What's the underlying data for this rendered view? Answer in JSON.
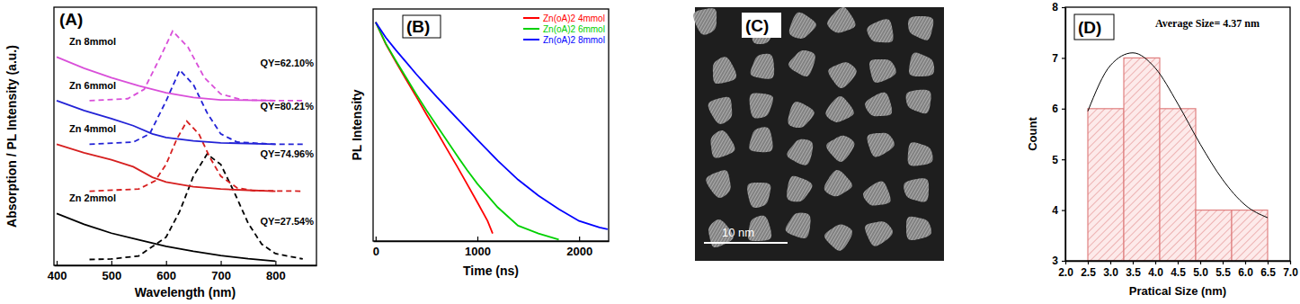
{
  "chart_data": [
    {
      "type": "line",
      "title": "(A)",
      "x_label": "Wavelength (nm)",
      "y_label": "Absorption / PL Intensity (a.u.)",
      "xlim": [
        395,
        875
      ],
      "xticks": [
        400,
        500,
        600,
        700,
        800
      ],
      "ylim": [
        0,
        11
      ],
      "tick_labels": "x",
      "annotations": [
        "QY=27.54%",
        "QY=74.96%",
        "QY=80.21%",
        "QY=62.10%"
      ],
      "series": [
        {
          "name": "Zn 2mmol",
          "color": "#000000",
          "line_style": "solid",
          "x": [
            400,
            450,
            500,
            550,
            600,
            650,
            700,
            750,
            800
          ],
          "values": [
            2.21,
            1.75,
            1.37,
            1.09,
            0.81,
            0.6,
            0.42,
            0.28,
            0.18
          ]
        },
        {
          "color": "#000000",
          "line_style": "dashed",
          "x": [
            460,
            500,
            550,
            600,
            625,
            650,
            675,
            700,
            725,
            750,
            775,
            800,
            850
          ],
          "values": [
            0.25,
            0.27,
            0.4,
            1.2,
            2.3,
            3.8,
            4.74,
            4.3,
            3.1,
            1.8,
            0.9,
            0.5,
            0.27
          ]
        },
        {
          "name": "Zn 4mmol",
          "color": "#d61f1f",
          "line_style": "solid",
          "x": [
            400,
            450,
            500,
            540,
            575,
            600,
            650,
            700,
            750,
            800
          ],
          "values": [
            5.16,
            4.8,
            4.5,
            4.2,
            3.75,
            3.55,
            3.35,
            3.25,
            3.2,
            3.16
          ]
        },
        {
          "color": "#d61f1f",
          "line_style": "dashed",
          "x": [
            460,
            550,
            580,
            600,
            620,
            638,
            660,
            680,
            700,
            730,
            760,
            850
          ],
          "values": [
            3.16,
            3.25,
            3.6,
            4.3,
            5.4,
            6.14,
            5.6,
            4.6,
            3.8,
            3.3,
            3.18,
            3.16
          ]
        },
        {
          "name": "Zn 6mmol",
          "color": "#2323d6",
          "line_style": "solid",
          "x": [
            400,
            450,
            500,
            540,
            575,
            600,
            650,
            700,
            800
          ],
          "values": [
            7.02,
            6.6,
            6.25,
            5.95,
            5.6,
            5.45,
            5.3,
            5.22,
            5.16
          ]
        },
        {
          "color": "#2323d6",
          "line_style": "dashed",
          "x": [
            460,
            540,
            570,
            600,
            625,
            650,
            675,
            700,
            730,
            800,
            850
          ],
          "values": [
            5.16,
            5.25,
            5.6,
            7.0,
            8.32,
            7.7,
            6.5,
            5.6,
            5.25,
            5.16,
            5.16
          ]
        },
        {
          "name": "Zn 8mmol",
          "color": "#d94fd9",
          "line_style": "solid",
          "x": [
            400,
            450,
            500,
            550,
            600,
            650,
            700,
            800
          ],
          "values": [
            8.88,
            8.4,
            8.0,
            7.65,
            7.35,
            7.15,
            7.05,
            7.02
          ]
        },
        {
          "color": "#d94fd9",
          "line_style": "dashed",
          "x": [
            460,
            530,
            560,
            590,
            612,
            640,
            670,
            700,
            740,
            800,
            850
          ],
          "values": [
            7.02,
            7.1,
            7.5,
            8.9,
            9.98,
            9.3,
            8.0,
            7.3,
            7.05,
            7.02,
            7.02
          ]
        }
      ]
    },
    {
      "type": "line",
      "title": "(B)",
      "x_label": "Time (ns)",
      "y_label": "PL Intensity",
      "xlim": [
        -25,
        2290
      ],
      "xticks": [
        0,
        1000,
        2000
      ],
      "ylim": [
        1,
        3000
      ],
      "log": "y",
      "tick_labels": "x",
      "legend": "top-right",
      "series": [
        {
          "name": "Zn(oA)2 4mmol",
          "color": "#ff0000",
          "line_style": "solid",
          "x": [
            0,
            100,
            200,
            300,
            400,
            500,
            600,
            700,
            800,
            900,
            1000,
            1100,
            1150
          ],
          "values": [
            1905,
            891,
            479,
            263,
            145,
            79,
            44,
            24,
            13.2,
            7.1,
            3.8,
            2.0,
            1.3
          ]
        },
        {
          "name": "Zn(oA)2 6mmol",
          "color": "#00d000",
          "line_style": "solid",
          "x": [
            0,
            100,
            200,
            300,
            400,
            500,
            600,
            700,
            800,
            900,
            1000,
            1200,
            1400,
            1600,
            1800
          ],
          "values": [
            1905,
            912,
            501,
            282,
            158,
            91,
            54,
            32,
            19,
            11.5,
            7.2,
            3.2,
            1.7,
            1.3,
            1.05
          ]
        },
        {
          "name": "Zn(oA)2 8mmol",
          "color": "#0000ff",
          "line_style": "solid",
          "x": [
            0,
            100,
            200,
            300,
            400,
            500,
            600,
            700,
            800,
            1000,
            1200,
            1400,
            1600,
            1800,
            2000,
            2200,
            2280
          ],
          "values": [
            1905,
            1122,
            724,
            479,
            316,
            214,
            145,
            100,
            69,
            33,
            16,
            8.3,
            4.8,
            3.0,
            2.0,
            1.6,
            1.5
          ]
        }
      ]
    },
    {
      "type": "histogram",
      "title": "(D)",
      "x_label": "Pratical Size (nm)",
      "y_label": "Count",
      "annotations": [
        "Average Size= 4.37 nm"
      ],
      "xlim": [
        2,
        7
      ],
      "xticks": [
        {
          "value": 2,
          "label": "2.0"
        },
        {
          "value": 2.5,
          "label": "2.5"
        },
        {
          "value": 3,
          "label": "3.0"
        },
        {
          "value": 3.5,
          "label": "3.5"
        },
        {
          "value": 4,
          "label": "4.0"
        },
        {
          "value": 4.5,
          "label": "4.5"
        },
        {
          "value": 5,
          "label": "5.0"
        },
        {
          "value": 5.5,
          "label": "5.5"
        },
        {
          "value": 6,
          "label": "6.0"
        },
        {
          "value": 6.5,
          "label": "6.5"
        },
        {
          "value": 7,
          "label": "7.0"
        }
      ],
      "ylim": [
        3,
        8
      ],
      "yticks": [
        3,
        4,
        5,
        6,
        7,
        8
      ],
      "color": "#e08080",
      "bins": [
        2.5,
        3.3,
        4.1,
        4.9,
        5.7,
        6.5
      ],
      "values": [
        6,
        7,
        6,
        4,
        4
      ],
      "fit": {
        "color": "#000000",
        "x": [
          2.5,
          3,
          3.5,
          4,
          4.5,
          5,
          5.5,
          6,
          6.5
        ],
        "values": [
          5.95,
          6.85,
          7.1,
          6.8,
          6.1,
          5.3,
          4.6,
          4.1,
          3.85
        ]
      }
    }
  ],
  "image": {
    "label": "(C)",
    "scale_bar": "10 nm"
  }
}
